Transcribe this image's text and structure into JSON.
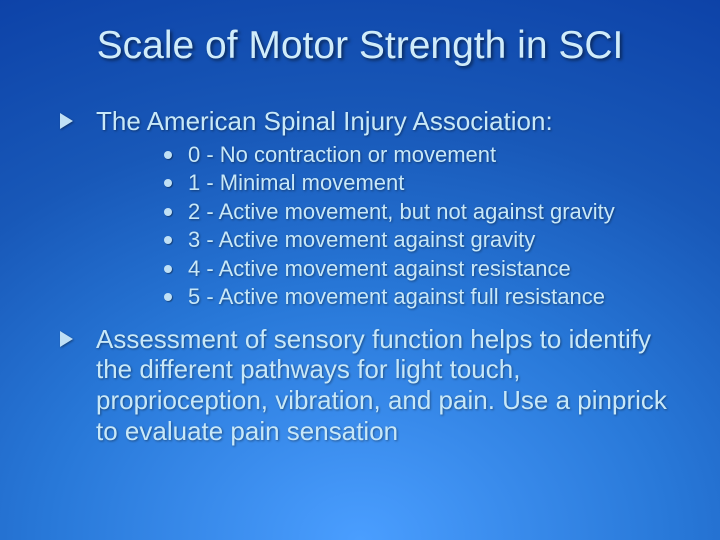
{
  "colors": {
    "text": "#c8e8f8",
    "bullet": "#c0e0f5",
    "bg_gradient_inner": "#4a9eff",
    "bg_gradient_mid1": "#2878d8",
    "bg_gradient_mid2": "#1858b8",
    "bg_gradient_outer": "#0838a0"
  },
  "typography": {
    "title_fontsize": 39,
    "l1_fontsize": 26,
    "l2_fontsize": 22,
    "font_family": "Arial"
  },
  "title": "Scale of Motor Strength in SCI",
  "bullets": [
    {
      "text": "The American Spinal Injury Association:",
      "sub": [
        "0 - No contraction or movement",
        "1 - Minimal movement",
        "2 - Active movement, but not against gravity",
        "3 - Active movement against gravity",
        "4 - Active movement against resistance",
        "5 - Active movement against full resistance"
      ]
    },
    {
      "text": "Assessment of sensory function helps to identify the different pathways for light touch, proprioception, vibration, and pain. Use a pinprick to evaluate pain sensation",
      "sub": []
    }
  ]
}
